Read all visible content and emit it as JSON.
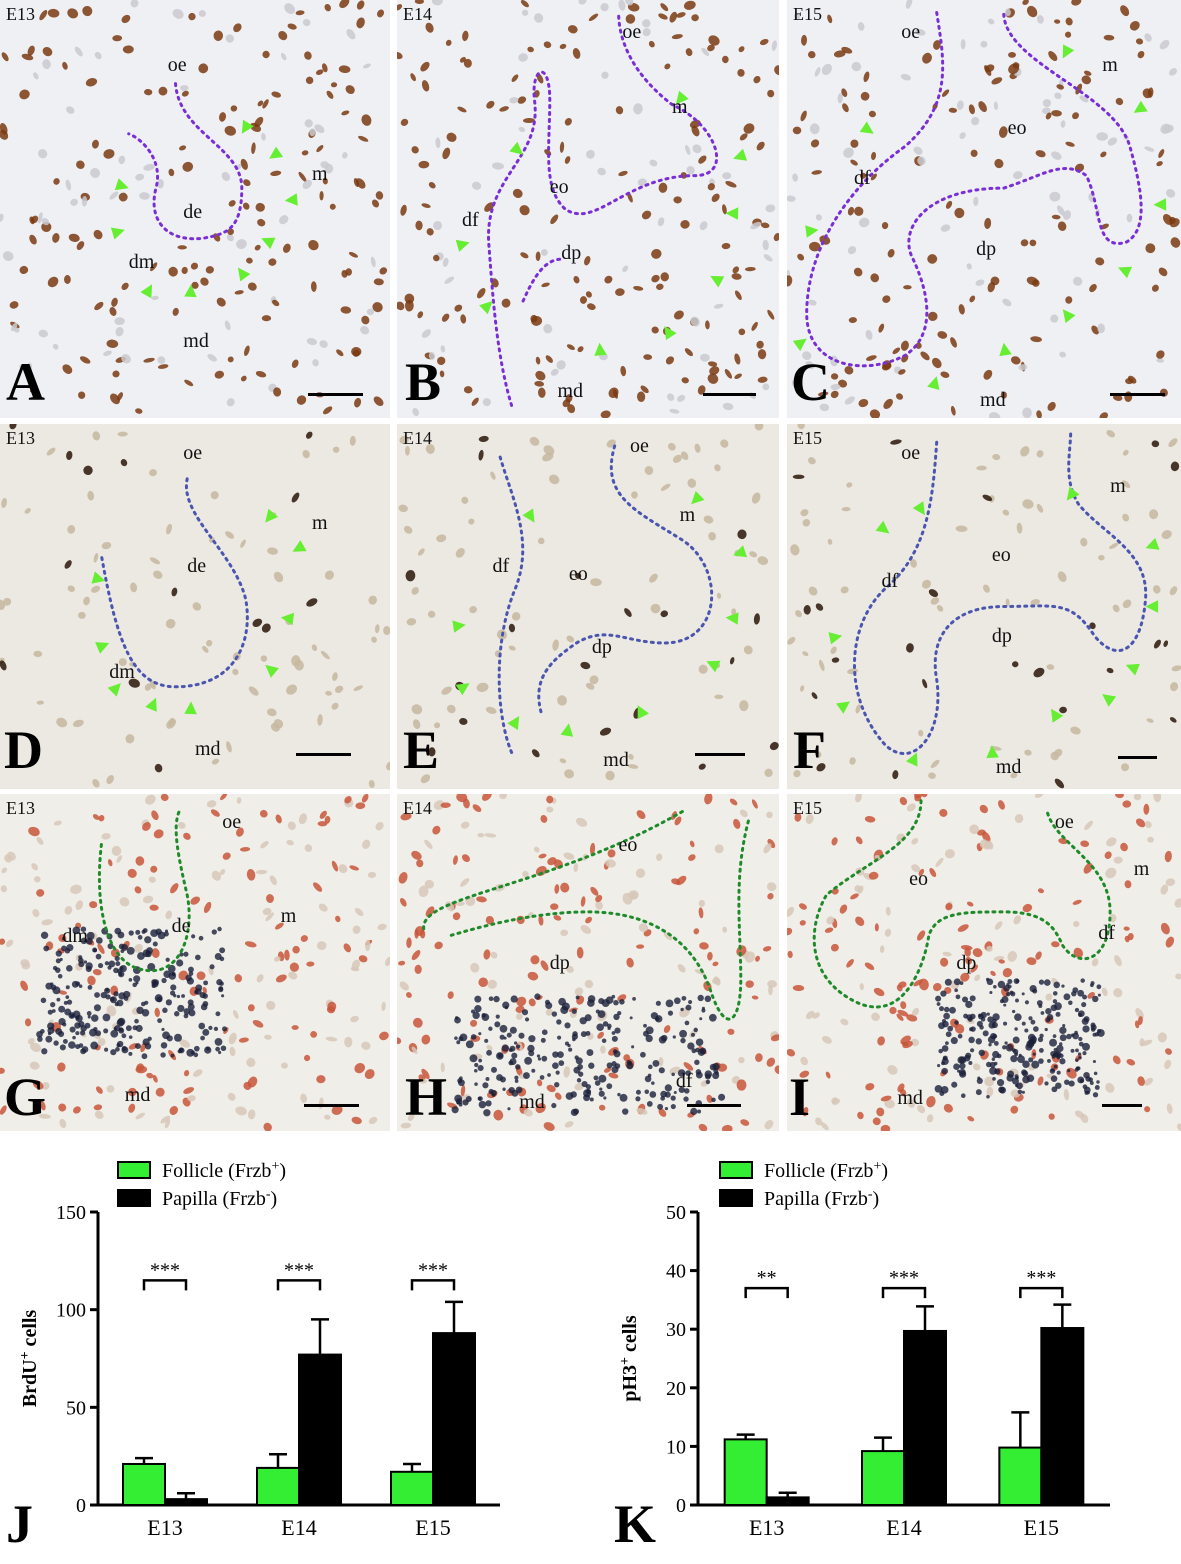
{
  "panels": [
    {
      "id": "A",
      "stage": "E13",
      "letter": "A",
      "style": "brdu",
      "labels": [
        "oe",
        "m",
        "de",
        "dm",
        "md"
      ]
    },
    {
      "id": "B",
      "stage": "E14",
      "letter": "B",
      "style": "brdu",
      "labels": [
        "oe",
        "m",
        "df",
        "eo",
        "dp",
        "md"
      ]
    },
    {
      "id": "C",
      "stage": "E15",
      "letter": "C",
      "style": "brdu",
      "labels": [
        "oe",
        "m",
        "eo",
        "df",
        "dp",
        "md"
      ]
    },
    {
      "id": "D",
      "stage": "E13",
      "letter": "D",
      "style": "ph3",
      "labels": [
        "oe",
        "m",
        "de",
        "dm",
        "md"
      ]
    },
    {
      "id": "E",
      "stage": "E14",
      "letter": "E",
      "style": "ph3",
      "labels": [
        "oe",
        "m",
        "df",
        "eo",
        "dp",
        "md"
      ]
    },
    {
      "id": "F",
      "stage": "E15",
      "letter": "F",
      "style": "ph3",
      "labels": [
        "oe",
        "m",
        "df",
        "eo",
        "dp",
        "md"
      ]
    },
    {
      "id": "G",
      "stage": "E13",
      "letter": "G",
      "style": "frzb",
      "labels": [
        "oe",
        "m",
        "de",
        "dm",
        "md"
      ]
    },
    {
      "id": "H",
      "stage": "E14",
      "letter": "H",
      "style": "frzb",
      "labels": [
        "eo",
        "dp",
        "df",
        "md"
      ]
    },
    {
      "id": "I",
      "stage": "E15",
      "letter": "I",
      "style": "frzb",
      "labels": [
        "oe",
        "m",
        "eo",
        "df",
        "dp",
        "md"
      ]
    }
  ],
  "colors": {
    "follicle": "#33ee33",
    "papilla": "#000000",
    "brdu_bg": "#eef0f4",
    "ph3_bg": "#ece8e2",
    "frzb_bg": "#efeee8",
    "outline_purple": "#7a2fd6",
    "outline_blue": "#4a55b0",
    "outline_green": "#1f8a2a",
    "arrow": "#66ee33"
  },
  "chart_data": [
    {
      "id": "J",
      "letter": "J",
      "type": "bar",
      "categories": [
        "E13",
        "E14",
        "E15"
      ],
      "ylabel": "BrdU+ cells",
      "ylim": [
        0,
        150
      ],
      "yticks": [
        0,
        50,
        100,
        150
      ],
      "series": [
        {
          "name": "Follicle (Frzb+)",
          "values": [
            21,
            19,
            17
          ],
          "errors": [
            3,
            7,
            4
          ],
          "color": "#33ee33"
        },
        {
          "name": "Papilla (Frzb-)",
          "values": [
            3,
            77,
            88
          ],
          "errors": [
            3,
            18,
            16
          ],
          "color": "#000000"
        }
      ],
      "significance": [
        "***",
        "***",
        "***"
      ],
      "legend": "top-left"
    },
    {
      "id": "K",
      "letter": "K",
      "type": "bar",
      "categories": [
        "E13",
        "E14",
        "E15"
      ],
      "ylabel": "pH3+ cells",
      "ylim": [
        0,
        50
      ],
      "yticks": [
        0,
        10,
        20,
        30,
        40,
        50
      ],
      "series": [
        {
          "name": "Follicle (Frzb+)",
          "values": [
            11.2,
            9.2,
            9.8
          ],
          "errors": [
            0.8,
            2.3,
            6
          ],
          "color": "#33ee33"
        },
        {
          "name": "Papilla (Frzb-)",
          "values": [
            1.3,
            29.7,
            30.2
          ],
          "errors": [
            0.8,
            4.2,
            4
          ],
          "color": "#000000"
        }
      ],
      "significance": [
        "**",
        "***",
        "***"
      ],
      "legend": "top-left"
    }
  ]
}
